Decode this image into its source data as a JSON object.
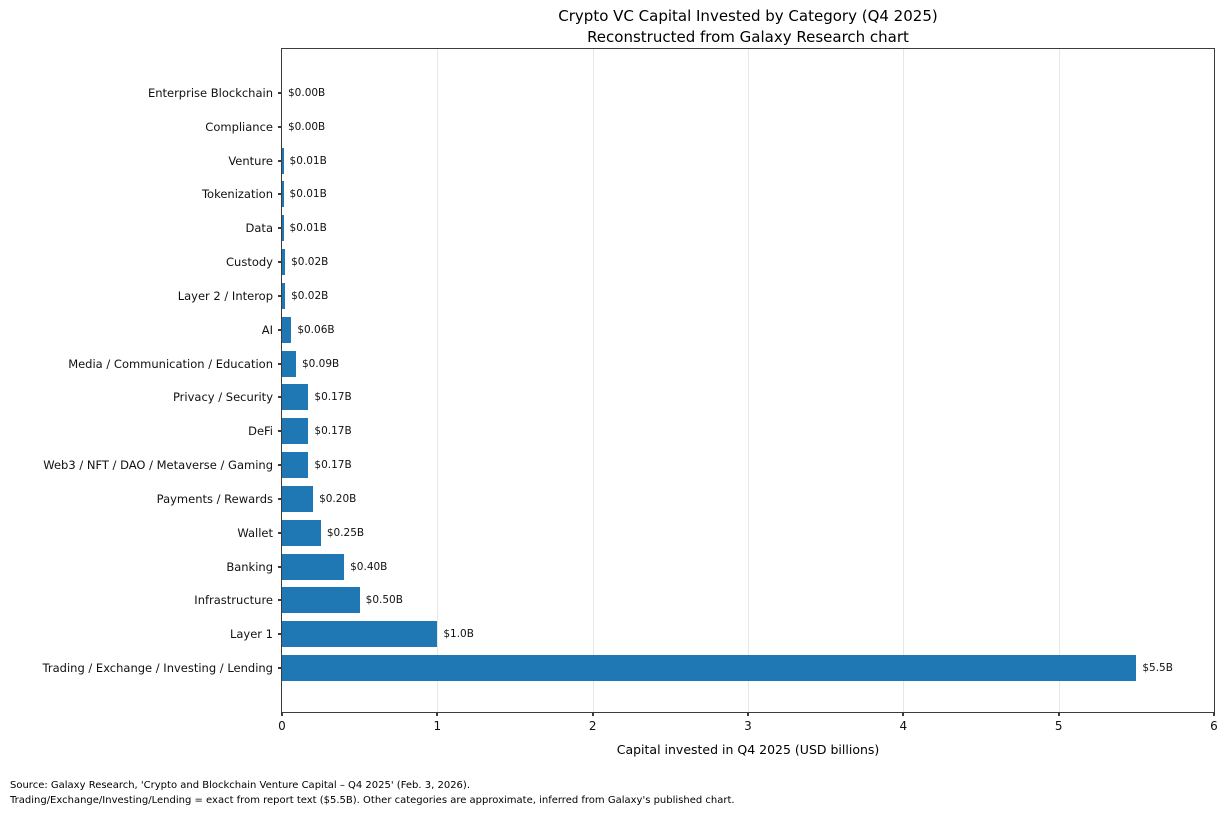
{
  "title": {
    "line1": "Crypto VC Capital Invested by Category (Q4 2025)",
    "line2": "Reconstructed from Galaxy Research chart"
  },
  "chart_data": {
    "type": "bar",
    "orientation": "horizontal",
    "title": "Crypto VC Capital Invested by Category (Q4 2025) — Reconstructed from Galaxy Research chart",
    "categories": [
      "Enterprise Blockchain",
      "Compliance",
      "Venture",
      "Tokenization",
      "Data",
      "Custody",
      "Layer 2 / Interop",
      "AI",
      "Media / Communication / Education",
      "Privacy / Security",
      "DeFi",
      "Web3 / NFT / DAO / Metaverse / Gaming",
      "Payments / Rewards",
      "Wallet",
      "Banking",
      "Infrastructure",
      "Layer 1",
      "Trading / Exchange / Investing / Lending"
    ],
    "values": [
      0.0,
      0.0,
      0.01,
      0.01,
      0.01,
      0.02,
      0.02,
      0.06,
      0.09,
      0.17,
      0.17,
      0.17,
      0.2,
      0.25,
      0.4,
      0.5,
      1.0,
      5.5
    ],
    "value_labels": [
      "$0.00B",
      "$0.00B",
      "$0.01B",
      "$0.01B",
      "$0.01B",
      "$0.02B",
      "$0.02B",
      "$0.06B",
      "$0.09B",
      "$0.17B",
      "$0.17B",
      "$0.17B",
      "$0.20B",
      "$0.25B",
      "$0.40B",
      "$0.50B",
      "$1.0B",
      "$5.5B"
    ],
    "xlabel": "Capital invested in Q4 2025 (USD billions)",
    "ylabel": "",
    "xlim": [
      0,
      6
    ],
    "x_ticks": [
      "0",
      "1",
      "2",
      "3",
      "4",
      "5",
      "6"
    ],
    "grid": "vertical, light gray, behind bars",
    "legend": "none",
    "bar_color": "#1f77b4"
  },
  "footer": {
    "line1": "Source: Galaxy Research, 'Crypto and Blockchain Venture Capital – Q4 2025' (Feb. 3, 2026).",
    "line2": "Trading/Exchange/Investing/Lending = exact from report text ($5.5B). Other categories are approximate, inferred from Galaxy's published chart."
  }
}
